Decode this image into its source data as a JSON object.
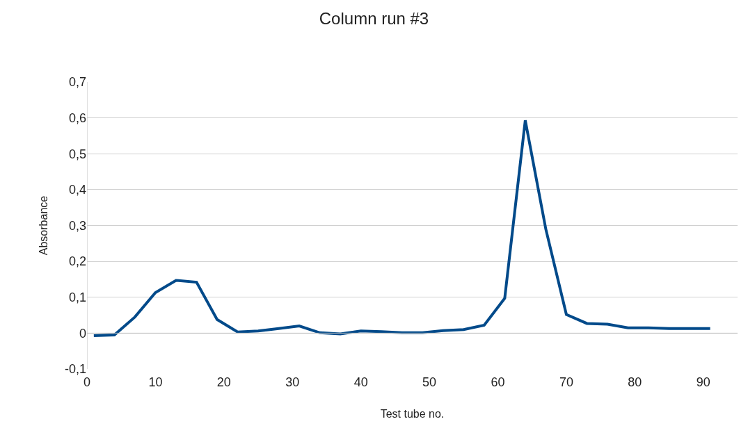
{
  "chart_data": {
    "type": "line",
    "title": "Column run #3",
    "xlabel": "Test tube no.",
    "ylabel": "Absorbance",
    "x": [
      1,
      4,
      7,
      10,
      13,
      16,
      19,
      22,
      25,
      28,
      31,
      34,
      37,
      40,
      43,
      46,
      49,
      52,
      55,
      58,
      61,
      64,
      67,
      70,
      73,
      76,
      79,
      82,
      85,
      88,
      91
    ],
    "series": [
      {
        "color": "#024a8a",
        "values": [
          -0.007,
          -0.005,
          0.045,
          0.113,
          0.147,
          0.142,
          0.038,
          0.003,
          0.006,
          0.013,
          0.02,
          0.001,
          -0.002,
          0.006,
          0.004,
          0.001,
          0.001,
          0.007,
          0.01,
          0.022,
          0.097,
          0.593,
          0.29,
          0.052,
          0.027,
          0.025,
          0.015,
          0.015,
          0.013,
          0.013,
          0.013
        ]
      }
    ],
    "xlim": [
      0,
      95
    ],
    "xticks": [
      0,
      10,
      20,
      30,
      40,
      50,
      60,
      70,
      80,
      90
    ],
    "ylim": [
      -0.1,
      0.7
    ],
    "yticks": [
      {
        "value": -0.1,
        "label": "-0,1"
      },
      0,
      {
        "value": 0.1,
        "label": "0,1"
      },
      {
        "value": 0.2,
        "label": "0,2"
      },
      {
        "value": 0.3,
        "label": "0,3"
      },
      {
        "value": 0.4,
        "label": "0,4"
      },
      {
        "value": 0.5,
        "label": "0,5"
      },
      {
        "value": 0.6,
        "label": "0,6"
      },
      {
        "value": 0.7,
        "label": "0,7"
      }
    ],
    "grid": "y",
    "marker": "none",
    "line_style": "solid"
  }
}
